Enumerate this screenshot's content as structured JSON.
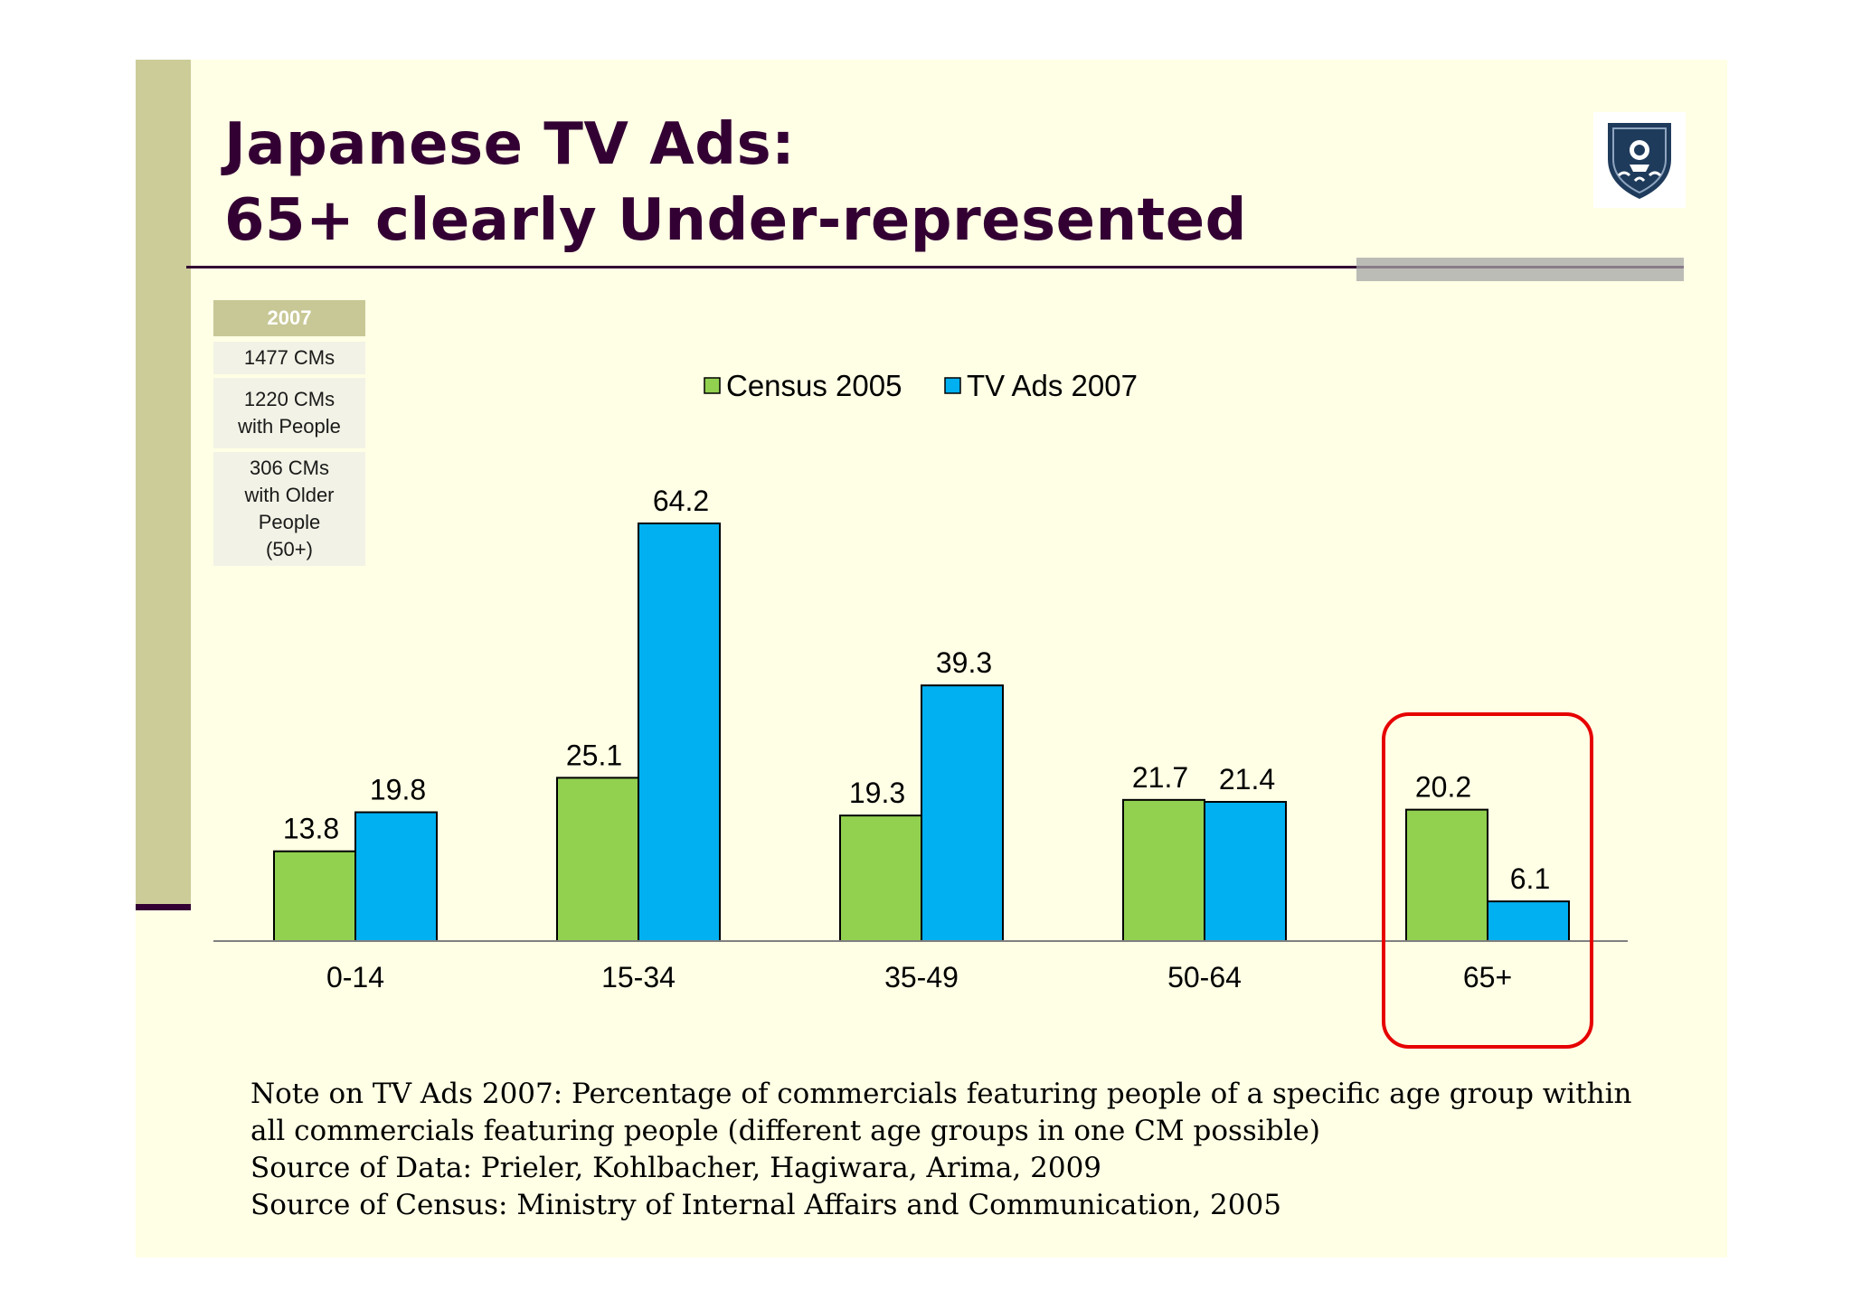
{
  "slide": {
    "title_line1": "Japanese TV Ads:",
    "title_line2": "65+ clearly Under-represented",
    "logo_icon": "university-crest-icon",
    "colors": {
      "background": "#ffffe5",
      "sidebar": "#cccc99",
      "title": "#330033",
      "highlight": "#e60000"
    }
  },
  "info_table": {
    "header": "2007",
    "rows": [
      {
        "lines": [
          "1477 CMs"
        ]
      },
      {
        "lines": [
          "1220 CMs",
          "with People"
        ]
      },
      {
        "lines": [
          "306 CMs",
          "with Older",
          "People",
          "(50+)"
        ]
      }
    ]
  },
  "notes": [
    "Note on TV Ads 2007: Percentage of commercials featuring people of a specific age group within all commercials featuring people (different age groups in one CM possible)",
    "Source of Data: Prieler, Kohlbacher, Hagiwara, Arima, 2009",
    "Source of Census: Ministry of Internal Affairs and Communication, 2005"
  ],
  "chart_data": {
    "type": "bar",
    "categories": [
      "0-14",
      "15-34",
      "35-49",
      "50-64",
      "65+"
    ],
    "series": [
      {
        "name": "Census 2005",
        "color": "#92d050",
        "values": [
          13.8,
          25.1,
          19.3,
          21.7,
          20.2
        ]
      },
      {
        "name": "TV Ads 2007",
        "color": "#00b0f0",
        "values": [
          19.8,
          64.2,
          39.3,
          21.4,
          6.1
        ]
      }
    ],
    "ylim": [
      0,
      64.2
    ],
    "legend": "top-center",
    "grid": false,
    "highlighted_category": "65+"
  }
}
